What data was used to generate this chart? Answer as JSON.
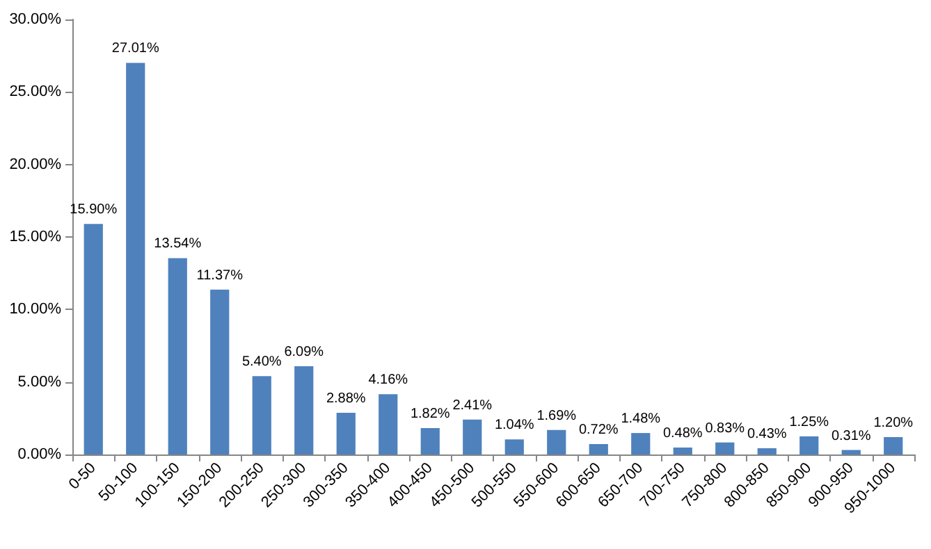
{
  "chart_data": {
    "type": "bar",
    "categories": [
      "0-50",
      "50-100",
      "100-150",
      "150-200",
      "200-250",
      "250-300",
      "300-350",
      "350-400",
      "400-450",
      "450-500",
      "500-550",
      "550-600",
      "600-650",
      "650-700",
      "700-750",
      "750-800",
      "800-850",
      "850-900",
      "900-950",
      "950-1000"
    ],
    "values": [
      15.9,
      27.01,
      13.54,
      11.37,
      5.4,
      6.09,
      2.88,
      4.16,
      1.82,
      2.41,
      1.04,
      1.69,
      0.72,
      1.48,
      0.48,
      0.83,
      0.43,
      1.25,
      0.31,
      1.2
    ],
    "value_labels": [
      "15.90%",
      "27.01%",
      "13.54%",
      "11.37%",
      "5.40%",
      "6.09%",
      "2.88%",
      "4.16%",
      "1.82%",
      "2.41%",
      "1.04%",
      "1.69%",
      "0.72%",
      "1.48%",
      "0.48%",
      "0.83%",
      "0.43%",
      "1.25%",
      "0.31%",
      "1.20%"
    ],
    "color": "#4f81bd",
    "ylim": [
      0,
      30
    ],
    "yticks": [
      {
        "value": 0,
        "label": "0.00%"
      },
      {
        "value": 5,
        "label": "5.00%"
      },
      {
        "value": 10,
        "label": "10.00%"
      },
      {
        "value": 15,
        "label": "15.00%"
      },
      {
        "value": 20,
        "label": "20.00%"
      },
      {
        "value": 25,
        "label": "25.00%"
      },
      {
        "value": 30,
        "label": "30.00%"
      }
    ]
  }
}
